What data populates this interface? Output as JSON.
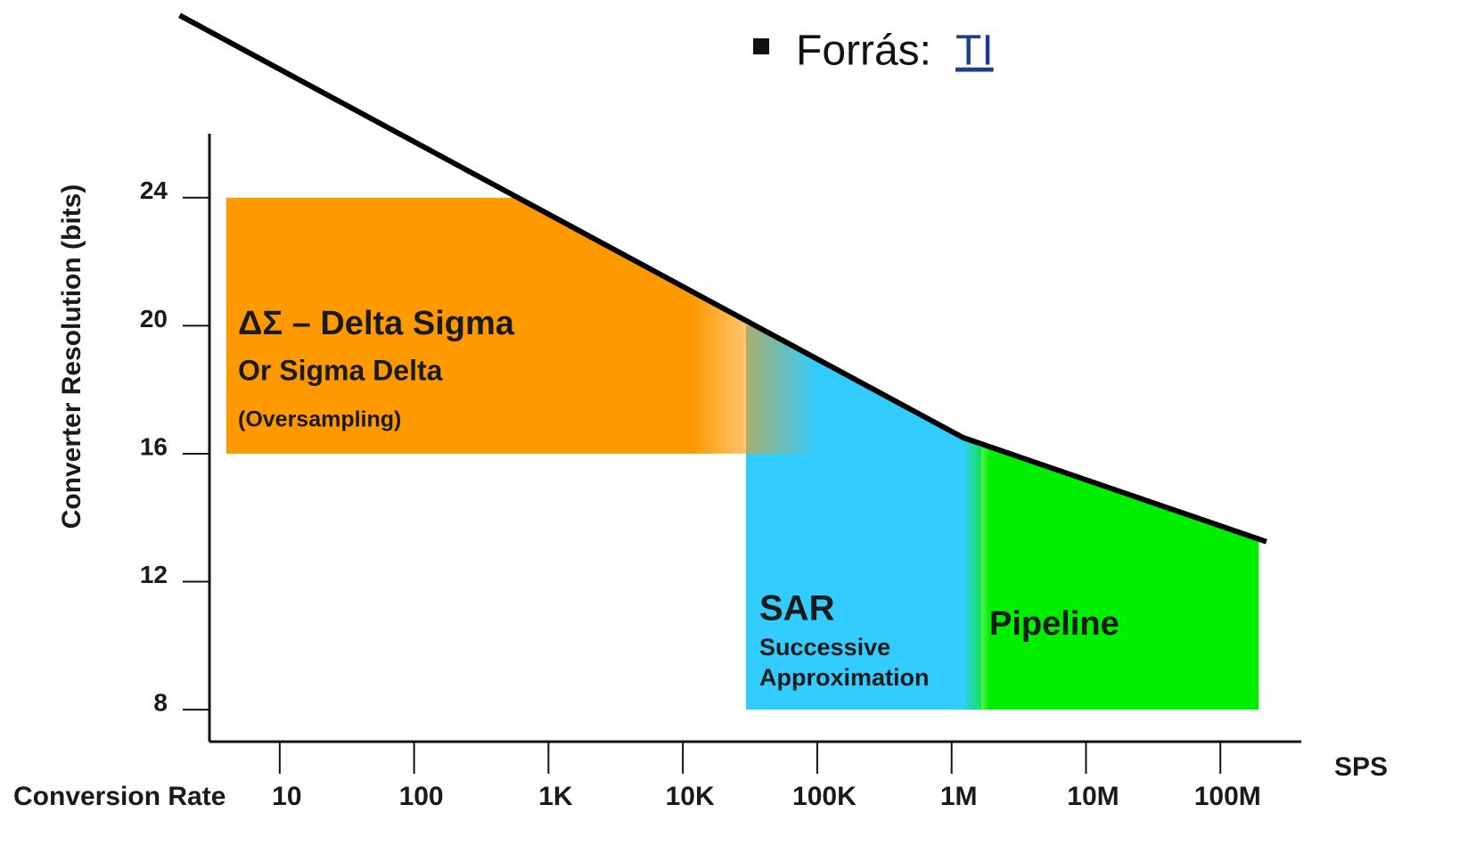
{
  "chart_data": {
    "type": "region",
    "y_label": "Converter Resolution (bits)",
    "x_label": "Conversion Rate",
    "x_unit": "SPS",
    "xscale": "log",
    "xlim": [
      3,
      400000000
    ],
    "ylim": [
      7,
      26
    ],
    "xticks": [
      {
        "value": 10,
        "label": "10"
      },
      {
        "value": 100,
        "label": "100"
      },
      {
        "value": 1000,
        "label": "1K"
      },
      {
        "value": 10000,
        "label": "10K"
      },
      {
        "value": 100000,
        "label": "100K"
      },
      {
        "value": 1000000,
        "label": "1M"
      },
      {
        "value": 10000000,
        "label": "10M"
      },
      {
        "value": 100000000,
        "label": "100M"
      }
    ],
    "yticks": [
      8,
      12,
      16,
      20,
      24
    ],
    "boundary": {
      "color": "#000000",
      "x": [
        1.8,
        1220000,
        220000000
      ],
      "y": [
        29.7,
        16.5,
        13.25
      ]
    },
    "regions": [
      {
        "lines": [
          "ΔΣ – Delta Sigma",
          "Or Sigma Delta",
          "(Oversampling)"
        ],
        "color": "#ff9900",
        "x": [
          4,
          100000
        ],
        "y": [
          16,
          24
        ]
      },
      {
        "lines": [
          "SAR",
          "Successive",
          "Approximation"
        ],
        "color": "#33ccff",
        "x": [
          29500,
          1660000
        ],
        "y": [
          8,
          20
        ]
      },
      {
        "lines": [
          "Pipeline"
        ],
        "color": "#00ee00",
        "x": [
          1220000,
          193000000
        ],
        "y": [
          8,
          17
        ]
      }
    ]
  },
  "source": {
    "prefix": "Forrás:",
    "link": "TI"
  }
}
